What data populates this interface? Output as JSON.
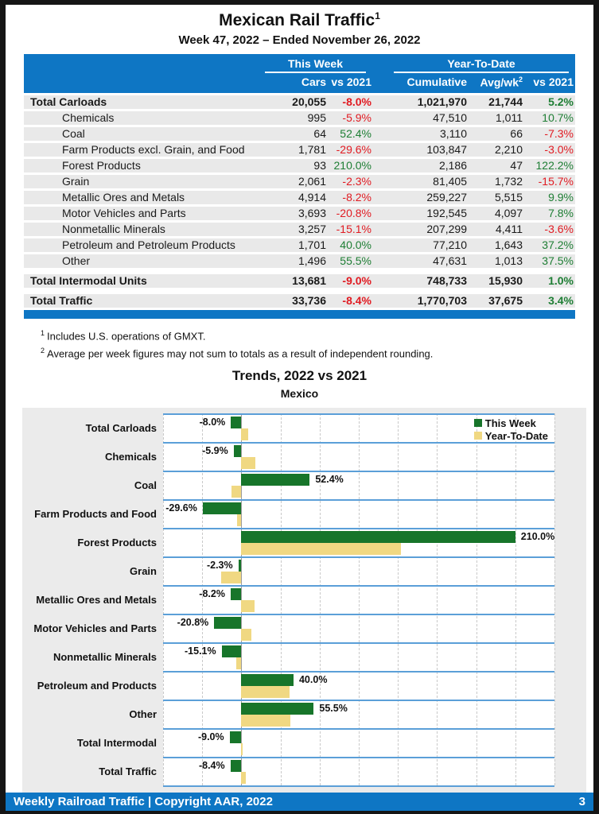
{
  "page": {
    "title": "Mexican Rail Traffic",
    "title_sup": "1",
    "subtitle": "Week 47, 2022 – Ended November 26, 2022"
  },
  "table": {
    "group_headers": {
      "this_week": "This Week",
      "ytd": "Year-To-Date"
    },
    "columns": {
      "cars": "Cars",
      "vs_tw": "vs 2021",
      "cumulative": "Cumulative",
      "avg_wk": "Avg/wk",
      "avg_wk_sup": "2",
      "vs_ytd": "vs 2021"
    },
    "rows": [
      {
        "label": "Total Carloads",
        "bold": true,
        "indent": false,
        "gap_before": false,
        "cars": "20,055",
        "vs_tw": "-8.0%",
        "cumulative": "1,021,970",
        "avg": "21,744",
        "vs_ytd": "5.2%"
      },
      {
        "label": "Chemicals",
        "bold": false,
        "indent": true,
        "gap_before": false,
        "cars": "995",
        "vs_tw": "-5.9%",
        "cumulative": "47,510",
        "avg": "1,011",
        "vs_ytd": "10.7%"
      },
      {
        "label": "Coal",
        "bold": false,
        "indent": true,
        "gap_before": false,
        "cars": "64",
        "vs_tw": "52.4%",
        "cumulative": "3,110",
        "avg": "66",
        "vs_ytd": "-7.3%"
      },
      {
        "label": "Farm Products excl. Grain, and Food",
        "bold": false,
        "indent": true,
        "gap_before": false,
        "cars": "1,781",
        "vs_tw": "-29.6%",
        "cumulative": "103,847",
        "avg": "2,210",
        "vs_ytd": "-3.0%"
      },
      {
        "label": "Forest Products",
        "bold": false,
        "indent": true,
        "gap_before": false,
        "cars": "93",
        "vs_tw": "210.0%",
        "cumulative": "2,186",
        "avg": "47",
        "vs_ytd": "122.2%"
      },
      {
        "label": "Grain",
        "bold": false,
        "indent": true,
        "gap_before": false,
        "cars": "2,061",
        "vs_tw": "-2.3%",
        "cumulative": "81,405",
        "avg": "1,732",
        "vs_ytd": "-15.7%"
      },
      {
        "label": "Metallic Ores and Metals",
        "bold": false,
        "indent": true,
        "gap_before": false,
        "cars": "4,914",
        "vs_tw": "-8.2%",
        "cumulative": "259,227",
        "avg": "5,515",
        "vs_ytd": "9.9%"
      },
      {
        "label": "Motor Vehicles and Parts",
        "bold": false,
        "indent": true,
        "gap_before": false,
        "cars": "3,693",
        "vs_tw": "-20.8%",
        "cumulative": "192,545",
        "avg": "4,097",
        "vs_ytd": "7.8%"
      },
      {
        "label": "Nonmetallic Minerals",
        "bold": false,
        "indent": true,
        "gap_before": false,
        "cars": "3,257",
        "vs_tw": "-15.1%",
        "cumulative": "207,299",
        "avg": "4,411",
        "vs_ytd": "-3.6%"
      },
      {
        "label": "Petroleum and Petroleum Products",
        "bold": false,
        "indent": true,
        "gap_before": false,
        "cars": "1,701",
        "vs_tw": "40.0%",
        "cumulative": "77,210",
        "avg": "1,643",
        "vs_ytd": "37.2%"
      },
      {
        "label": "Other",
        "bold": false,
        "indent": true,
        "gap_before": false,
        "cars": "1,496",
        "vs_tw": "55.5%",
        "cumulative": "47,631",
        "avg": "1,013",
        "vs_ytd": "37.5%"
      },
      {
        "label": "Total Intermodal Units",
        "bold": true,
        "indent": false,
        "gap_before": true,
        "cars": "13,681",
        "vs_tw": "-9.0%",
        "cumulative": "748,733",
        "avg": "15,930",
        "vs_ytd": "1.0%"
      },
      {
        "label": "Total Traffic",
        "bold": true,
        "indent": false,
        "gap_before": true,
        "cars": "33,736",
        "vs_tw": "-8.4%",
        "cumulative": "1,770,703",
        "avg": "37,675",
        "vs_ytd": "3.4%"
      }
    ]
  },
  "footnotes": [
    {
      "sup": "1",
      "text": "Includes U.S. operations of GMXT."
    },
    {
      "sup": "2",
      "text": "Average per week figures may not sum to totals as a result of independent rounding."
    }
  ],
  "chart_data": {
    "type": "bar",
    "orientation": "horizontal",
    "title": "Trends, 2022 vs 2021",
    "subtitle": "Mexico",
    "categories": [
      "Total Carloads",
      "Chemicals",
      "Coal",
      "Farm Products and Food",
      "Forest Products",
      "Grain",
      "Metallic Ores and Metals",
      "Motor Vehicles and Parts",
      "Nonmetallic Minerals",
      "Petroleum and Products",
      "Other",
      "Total Intermodal",
      "Total Traffic"
    ],
    "series": [
      {
        "name": "This Week",
        "color": "#17752a",
        "values": [
          -8.0,
          -5.9,
          52.4,
          -29.6,
          210.0,
          -2.3,
          -8.2,
          -20.8,
          -15.1,
          40.0,
          55.5,
          -9.0,
          -8.4
        ]
      },
      {
        "name": "Year-To-Date",
        "color": "#f0d882",
        "values": [
          5.2,
          10.7,
          -7.3,
          -3.0,
          122.2,
          -15.7,
          9.9,
          7.8,
          -3.6,
          37.2,
          37.5,
          1.0,
          3.4
        ]
      }
    ],
    "data_labels_series": "This Week",
    "x_ticks": [
      "-60%",
      "-30%",
      "0%",
      "30%",
      "60%",
      "90%",
      "120%",
      "150%",
      "180%",
      "210%",
      "240%"
    ],
    "xlim": [
      -60,
      240
    ],
    "tick_step": 30,
    "legend_position": "top-right",
    "grid": "vertical-dashed"
  },
  "footer": {
    "left": "Weekly Railroad Traffic | Copyright AAR, 2022",
    "page": "3"
  },
  "colors": {
    "accent_blue": "#0e76c4",
    "row_gray": "#e9e9e9",
    "negative_red": "#e11b22",
    "positive_green": "#1e7e34",
    "bar_green": "#17752a",
    "bar_tan": "#f0d882",
    "band_blue": "#5b9fd8",
    "chart_bg": "#ebebeb"
  }
}
